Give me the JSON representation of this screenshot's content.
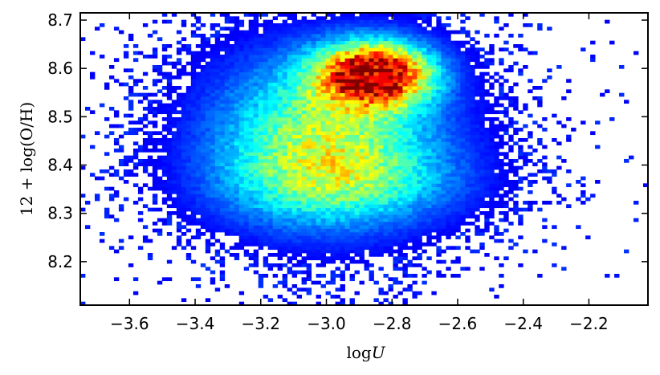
{
  "chart_data": {
    "type": "heatmap",
    "xlabel": "logU",
    "ylabel": "12 + log(O/H)",
    "xlim": [
      -3.75,
      -2.02
    ],
    "ylim": [
      8.11,
      8.715
    ],
    "x_ticks": [
      -3.6,
      -3.4,
      -3.2,
      -3.0,
      -2.8,
      -2.6,
      -2.4,
      -2.2
    ],
    "x_tick_labels": [
      "−3.6",
      "−3.4",
      "−3.2",
      "−3.0",
      "−2.8",
      "−2.6",
      "−2.4",
      "−2.2"
    ],
    "y_ticks": [
      8.2,
      8.3,
      8.4,
      8.5,
      8.6,
      8.7
    ],
    "y_tick_labels": [
      "8.2",
      "8.3",
      "8.4",
      "8.5",
      "8.6",
      "8.7"
    ],
    "colormap": "jet",
    "grid": false,
    "density_peak": {
      "logU": -2.82,
      "oh": 8.58
    },
    "density_components": [
      {
        "logU": -3.0,
        "oh": 8.46,
        "sigma_x": 0.25,
        "sigma_y": 0.125,
        "weight": 0.55
      },
      {
        "logU": -2.85,
        "oh": 8.59,
        "sigma_x": 0.12,
        "sigma_y": 0.045,
        "weight": 0.95
      },
      {
        "logU": -2.95,
        "oh": 8.36,
        "sigma_x": 0.27,
        "sigma_y": 0.06,
        "weight": 0.22
      }
    ],
    "bin_grid": {
      "nx": 118,
      "ny": 84
    }
  }
}
